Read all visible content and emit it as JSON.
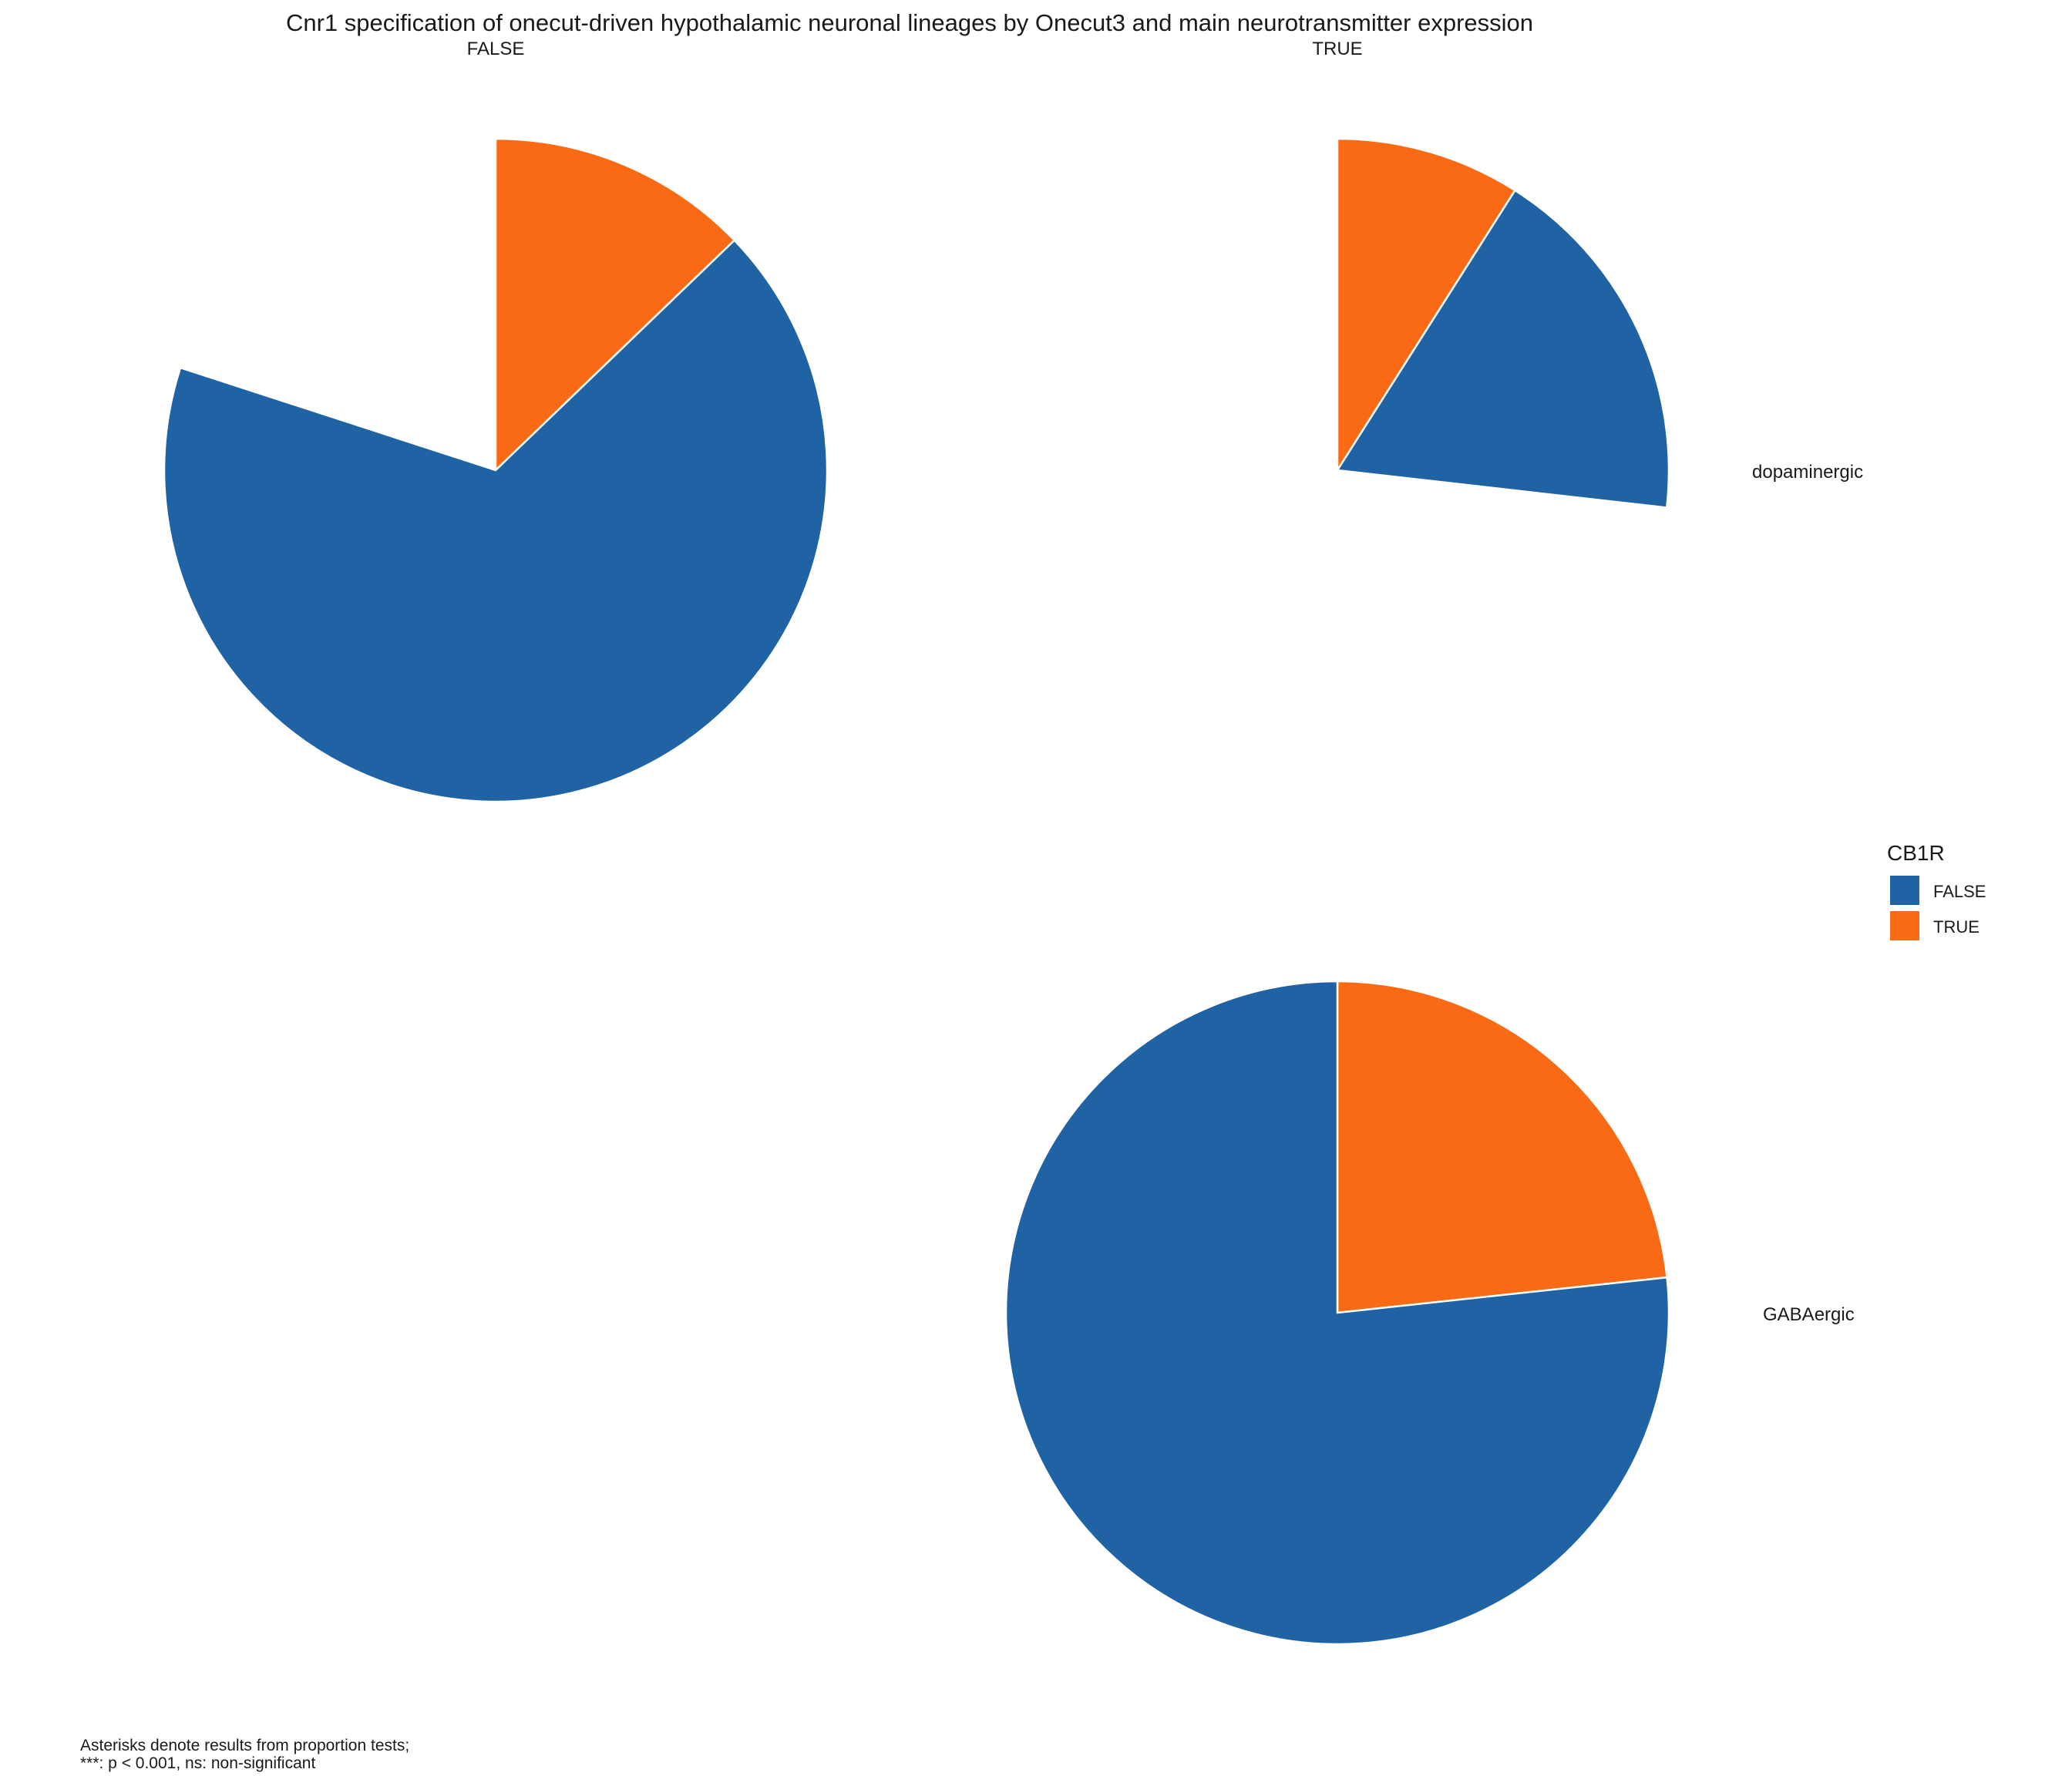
{
  "chart_data": {
    "type": "pie",
    "title": "Cnr1 specification of onecut-driven hypothalamic neuronal lineages by Onecut3 and main neurotransmitter expression",
    "columns": [
      "FALSE",
      "TRUE"
    ],
    "rows": [
      "dopaminergic",
      "GABAergic"
    ],
    "legend": {
      "title": "CB1R",
      "position": "right",
      "entries": [
        {
          "label": "FALSE",
          "color": "#1F63A5"
        },
        {
          "label": "TRUE",
          "color": "#FA6A15"
        }
      ]
    },
    "panels": [
      {
        "column": "FALSE",
        "row": "dopaminergic",
        "slices": [
          {
            "label": "TRUE",
            "value": 0.128
          },
          {
            "label": "FALSE",
            "value": 0.672
          }
        ]
      },
      {
        "column": "TRUE",
        "row": "dopaminergic",
        "slices": [
          {
            "label": "TRUE",
            "value": 0.09
          },
          {
            "label": "FALSE",
            "value": 0.178
          }
        ]
      },
      {
        "column": "TRUE",
        "row": "GABAergic",
        "slices": [
          {
            "label": "TRUE",
            "value": 0.233
          },
          {
            "label": "FALSE",
            "value": 0.767
          }
        ]
      }
    ],
    "caption": [
      "Asterisks denote results from proportion tests;",
      "***: p < 0.001, ns: non-significant"
    ]
  }
}
